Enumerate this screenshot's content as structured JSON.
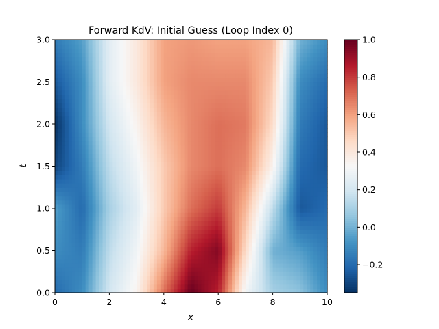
{
  "chart_data": {
    "type": "heatmap",
    "title": "Forward KdV: Initial Guess (Loop Index 0)",
    "xlabel": "x",
    "ylabel": "t",
    "xlim": [
      0,
      10
    ],
    "ylim": [
      0,
      3
    ],
    "x_ticks": [
      0,
      2,
      4,
      6,
      8,
      10
    ],
    "x_tick_labels": [
      "0",
      "2",
      "4",
      "6",
      "8",
      "10"
    ],
    "y_ticks": [
      0,
      0.5,
      1,
      1.5,
      2,
      2.5,
      3
    ],
    "y_tick_labels": [
      "0.0",
      "0.5",
      "1.0",
      "1.5",
      "2.0",
      "2.5",
      "3.0"
    ],
    "grid": false,
    "colormap": "RdBu_r",
    "colorbar": {
      "vmin": -0.35,
      "vmax": 1.0,
      "ticks": [
        -0.2,
        0,
        0.2,
        0.4,
        0.6,
        0.8,
        1.0
      ],
      "tick_labels": [
        "−0.2",
        "0.0",
        "0.2",
        "0.4",
        "0.6",
        "0.8",
        "1.0"
      ]
    },
    "t_samples": [
      0,
      0.5,
      1,
      1.5,
      2,
      2.5,
      3
    ],
    "x_samples": [
      0,
      1,
      2,
      3,
      4,
      5,
      6,
      7,
      8,
      9,
      10
    ],
    "values": [
      [
        -0.2,
        -0.1,
        0.2,
        0.35,
        0.7,
        1.0,
        0.85,
        0.3,
        0.1,
        0.05,
        -0.1
      ],
      [
        -0.1,
        -0.15,
        0.15,
        0.3,
        0.55,
        0.85,
        0.95,
        0.45,
        0.0,
        -0.05,
        -0.15
      ],
      [
        -0.05,
        -0.2,
        0.1,
        0.25,
        0.5,
        0.7,
        0.8,
        0.55,
        0.15,
        -0.25,
        -0.2
      ],
      [
        -0.3,
        -0.15,
        0.15,
        0.3,
        0.5,
        0.65,
        0.7,
        0.65,
        0.35,
        -0.2,
        -0.25
      ],
      [
        -0.35,
        -0.1,
        0.2,
        0.35,
        0.55,
        0.65,
        0.7,
        0.68,
        0.45,
        -0.15,
        -0.25
      ],
      [
        -0.25,
        -0.1,
        0.25,
        0.4,
        0.6,
        0.65,
        0.65,
        0.65,
        0.5,
        -0.1,
        -0.2
      ],
      [
        -0.15,
        -0.05,
        0.25,
        0.4,
        0.6,
        0.62,
        0.6,
        0.6,
        0.55,
        0.0,
        -0.1
      ]
    ]
  }
}
